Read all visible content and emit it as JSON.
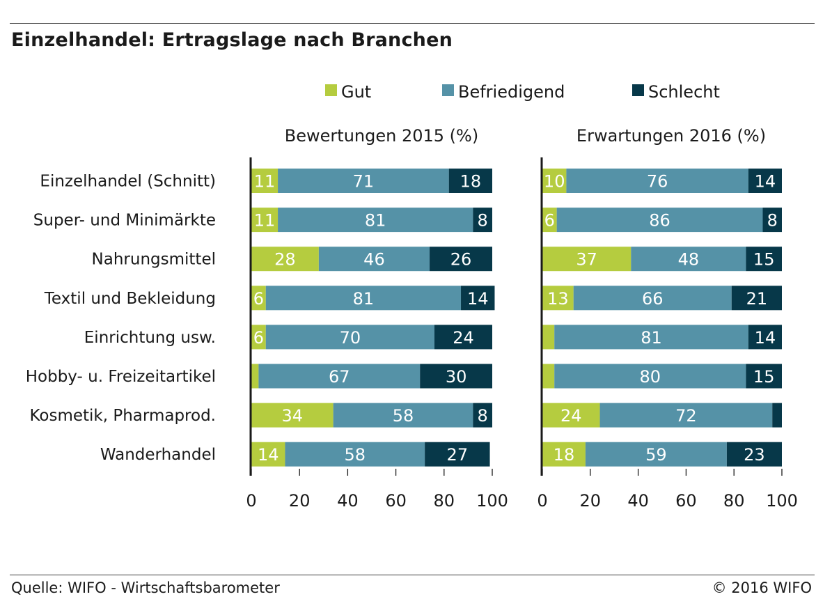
{
  "title": "Einzelhandel: Ertragslage nach Branchen",
  "source": "Quelle: WIFO - Wirtschaftsbarometer",
  "copyright": "© 2016 WIFO",
  "colors": {
    "gut": "#b5cc3f",
    "befriedigend": "#5592a7",
    "schlecht": "#073849"
  },
  "chart_data": {
    "type": "bar",
    "orientation": "horizontal",
    "stacked": true,
    "legend": {
      "placement": "top",
      "entries": [
        "Gut",
        "Befriedigend",
        "Schlecht"
      ]
    },
    "categories": [
      "Einzelhandel (Schnitt)",
      "Super- und Minimärkte",
      "Nahrungsmittel",
      "Textil und Bekleidung",
      "Einrichtung usw.",
      "Hobby- u. Freizeitartikel",
      "Kosmetik, Pharmaprod.",
      "Wanderhandel"
    ],
    "panels": [
      {
        "title": "Bewertungen 2015 (%)",
        "xlim": [
          0,
          100
        ],
        "xticks": [
          0,
          20,
          40,
          60,
          80,
          100
        ],
        "series": [
          {
            "name": "Gut",
            "values": [
              11,
              11,
              28,
              6,
              6,
              3,
              34,
              14
            ],
            "labels": [
              "11",
              "11",
              "28",
              "6",
              "6",
              "",
              "34",
              "14"
            ]
          },
          {
            "name": "Befriedigend",
            "values": [
              71,
              81,
              46,
              81,
              70,
              67,
              58,
              58
            ],
            "labels": [
              "71",
              "81",
              "46",
              "81",
              "70",
              "67",
              "58",
              "58"
            ]
          },
          {
            "name": "Schlecht",
            "values": [
              18,
              8,
              26,
              14,
              24,
              30,
              8,
              27
            ],
            "labels": [
              "18",
              "8",
              "26",
              "14",
              "24",
              "30",
              "8",
              "27"
            ]
          }
        ]
      },
      {
        "title": "Erwartungen 2016 (%)",
        "xlim": [
          0,
          100
        ],
        "xticks": [
          0,
          20,
          40,
          60,
          80,
          100
        ],
        "series": [
          {
            "name": "Gut",
            "values": [
              10,
              6,
              37,
              13,
              5,
              5,
              24,
              18
            ],
            "labels": [
              "10",
              "6",
              "37",
              "13",
              "",
              "",
              "24",
              "18"
            ]
          },
          {
            "name": "Befriedigend",
            "values": [
              76,
              86,
              48,
              66,
              81,
              80,
              72,
              59
            ],
            "labels": [
              "76",
              "86",
              "48",
              "66",
              "81",
              "80",
              "72",
              "59"
            ]
          },
          {
            "name": "Schlecht",
            "values": [
              14,
              8,
              15,
              21,
              14,
              15,
              4,
              23
            ],
            "labels": [
              "14",
              "8",
              "15",
              "21",
              "14",
              "15",
              "",
              "23"
            ]
          }
        ]
      }
    ]
  }
}
